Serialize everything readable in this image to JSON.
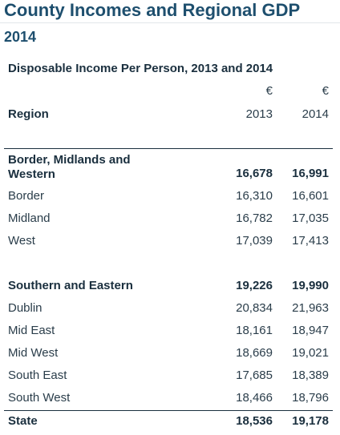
{
  "header": {
    "title": "County Incomes and Regional GDP",
    "subtitle": "2014"
  },
  "table": {
    "caption": "Disposable Income Per Person, 2013 and 2014",
    "unit_row": [
      "€",
      "€"
    ],
    "columns": {
      "region": "Region",
      "year1": "2013",
      "year2": "2014"
    },
    "rows": [
      {
        "region": "Border, Midlands and Western",
        "v2013": "16,678",
        "v2014": "16,991",
        "type": "group"
      },
      {
        "region": "Border",
        "v2013": "16,310",
        "v2014": "16,601",
        "type": "item"
      },
      {
        "region": "Midland",
        "v2013": "16,782",
        "v2014": "17,035",
        "type": "item"
      },
      {
        "region": "West",
        "v2013": "17,039",
        "v2014": "17,413",
        "type": "item"
      },
      {
        "region": "Southern and Eastern",
        "v2013": "19,226",
        "v2014": "19,990",
        "type": "group"
      },
      {
        "region": "Dublin",
        "v2013": "20,834",
        "v2014": "21,963",
        "type": "item"
      },
      {
        "region": "Mid East",
        "v2013": "18,161",
        "v2014": "18,947",
        "type": "item"
      },
      {
        "region": "Mid West",
        "v2013": "18,669",
        "v2014": "19,021",
        "type": "item"
      },
      {
        "region": "South East",
        "v2013": "17,685",
        "v2014": "18,389",
        "type": "item"
      },
      {
        "region": "South West",
        "v2013": "18,466",
        "v2014": "18,796",
        "type": "item"
      },
      {
        "region": "State",
        "v2013": "18,536",
        "v2014": "19,178",
        "type": "total"
      }
    ]
  }
}
